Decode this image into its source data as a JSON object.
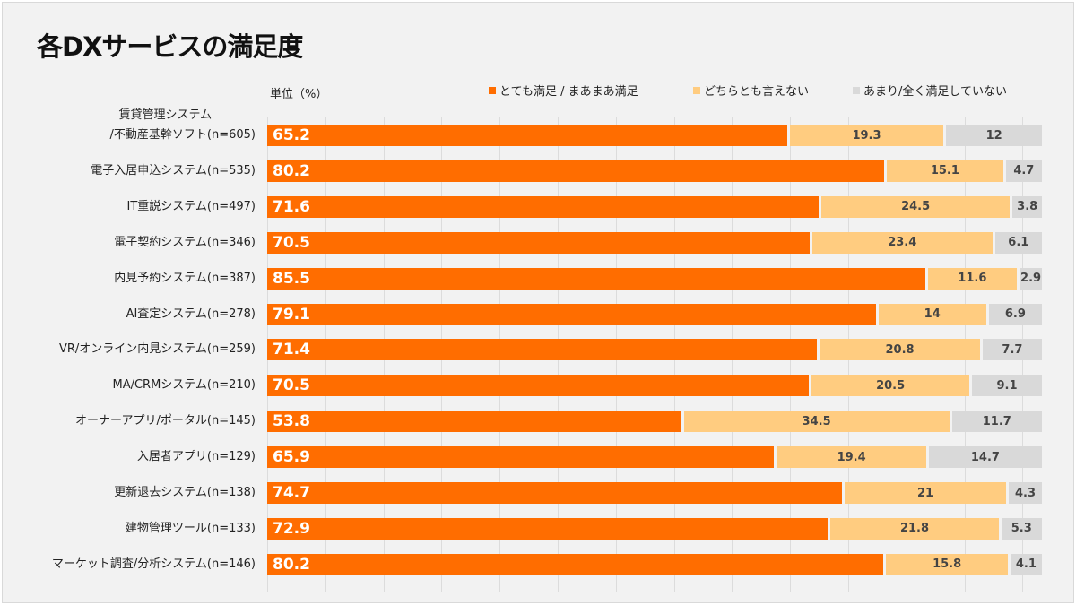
{
  "chart_data": {
    "type": "bar",
    "orientation": "horizontal",
    "stacked": "percent",
    "title": "各DXサービスの満足度",
    "unit_label": "単位（%）",
    "legend_position": "top-right",
    "grid": true,
    "categories": [
      [
        "賃貸管理システム",
        "/不動産基幹ソフト(n=605)"
      ],
      [
        "電子入居申込システム(n=535)"
      ],
      [
        "IT重説システム(n=497)"
      ],
      [
        "電子契約システム(n=346)"
      ],
      [
        "内見予約システム(n=387)"
      ],
      [
        "AI査定システム(n=278)"
      ],
      [
        "VR/オンライン内見システム(n=259)"
      ],
      [
        "MA/CRMシステム(n=210)"
      ],
      [
        "オーナーアプリ/ポータル(n=145)"
      ],
      [
        "入居者アプリ(n=129)"
      ],
      [
        "更新退去システム(n=138)"
      ],
      [
        "建物管理ツール(n=133)"
      ],
      [
        "マーケット調査/分析システム(n=146)"
      ]
    ],
    "series": [
      {
        "name": "とても満足 / まあまあ満足",
        "color": "#ff6d00",
        "values": [
          65.2,
          80.2,
          71.6,
          70.5,
          85.5,
          79.1,
          71.4,
          70.5,
          53.8,
          65.9,
          74.7,
          72.9,
          80.2
        ]
      },
      {
        "name": "どちらとも言えない",
        "color": "#ffcc80",
        "values": [
          19.3,
          15.1,
          24.5,
          23.4,
          11.6,
          14,
          20.8,
          20.5,
          34.5,
          19.4,
          21,
          21.8,
          15.8
        ]
      },
      {
        "name": "あまり/全く満足していない",
        "color": "#d9d9d9",
        "values": [
          12,
          4.7,
          3.8,
          6.1,
          2.9,
          6.9,
          7.7,
          9.1,
          11.7,
          14.7,
          4.3,
          5.3,
          4.1
        ]
      }
    ]
  }
}
